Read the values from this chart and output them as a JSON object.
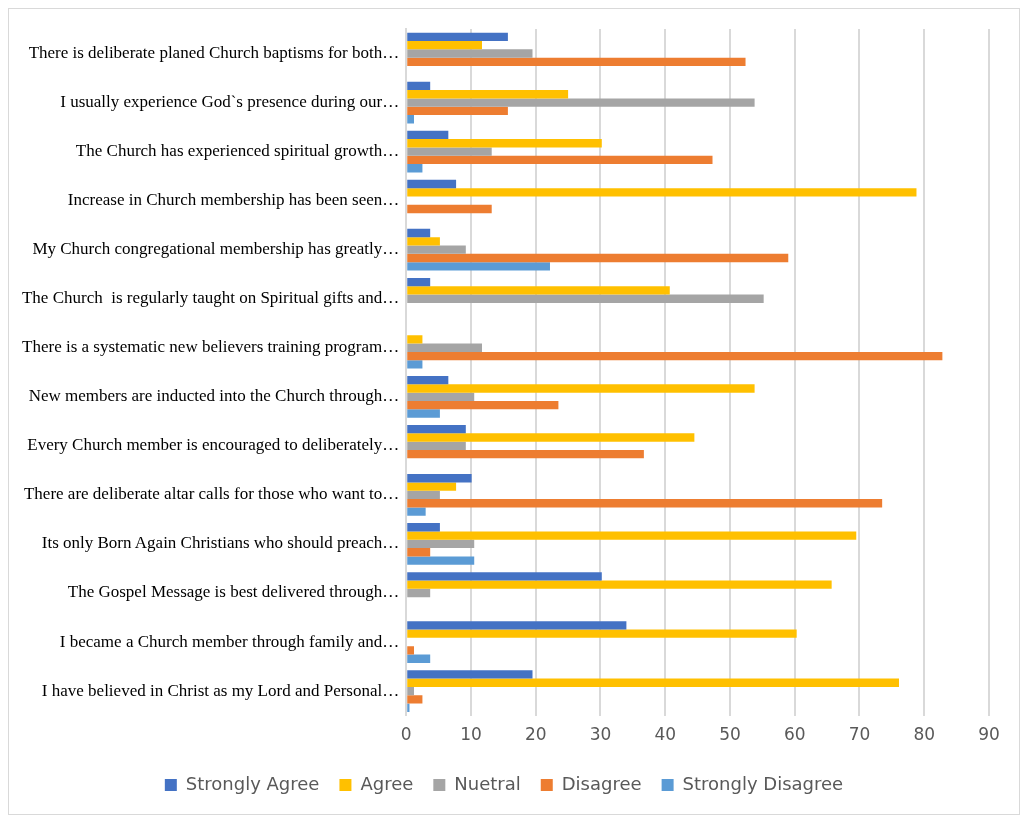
{
  "chart_data": {
    "type": "bar",
    "orientation": "horizontal",
    "categories": [
      "There is deliberate planed Church baptisms for both…",
      "I usually experience God`s presence during our…",
      "The Church has experienced spiritual growth…",
      "Increase in Church membership has been seen…",
      "My Church congregational membership has greatly…",
      "The Church  is regularly taught on Spiritual gifts and…",
      "There is a systematic new believers training program…",
      "New members are inducted into the Church through…",
      "Every Church member is encouraged to deliberately…",
      "There are deliberate altar calls for those who want to…",
      "Its only Born Again Christians who should preach…",
      "The Gospel Message is best delivered through…",
      "I became a Church member through family and…",
      "I have believed in Christ as my Lord and Personal…"
    ],
    "series": [
      {
        "name": "Strongly Agree",
        "color": "#4472c4",
        "values": [
          15.7,
          3.7,
          6.5,
          7.7,
          3.7,
          3.7,
          null,
          6.5,
          9.2,
          10.1,
          5.2,
          30.2,
          34,
          19.5
        ]
      },
      {
        "name": "Agree",
        "color": "#ffc000",
        "values": [
          11.7,
          25,
          30.2,
          78.8,
          5.2,
          40.7,
          2.5,
          53.8,
          44.5,
          7.7,
          69.5,
          65.7,
          60.3,
          76.1
        ]
      },
      {
        "name": "Nuetral",
        "color": "#a5a5a5",
        "values": [
          19.5,
          53.8,
          13.2,
          null,
          9.2,
          55.2,
          11.7,
          10.5,
          9.2,
          5.2,
          10.5,
          3.7,
          null,
          1.2
        ]
      },
      {
        "name": "Disagree",
        "color": "#ed7d31",
        "values": [
          52.4,
          15.7,
          47.3,
          13.2,
          59,
          null,
          82.8,
          23.5,
          36.7,
          73.5,
          3.7,
          null,
          1.2,
          2.5
        ]
      },
      {
        "name": "Strongly Disagree",
        "color": "#5b9bd5",
        "values": [
          null,
          1.2,
          2.5,
          null,
          22.2,
          null,
          2.5,
          5.2,
          null,
          3,
          10.5,
          null,
          3.7,
          0.5
        ]
      }
    ],
    "xlim": [
      0,
      90
    ],
    "xticks": [
      0,
      10,
      20,
      30,
      40,
      50,
      60,
      70,
      80,
      90
    ],
    "grid": "x",
    "legend": "bottom"
  }
}
